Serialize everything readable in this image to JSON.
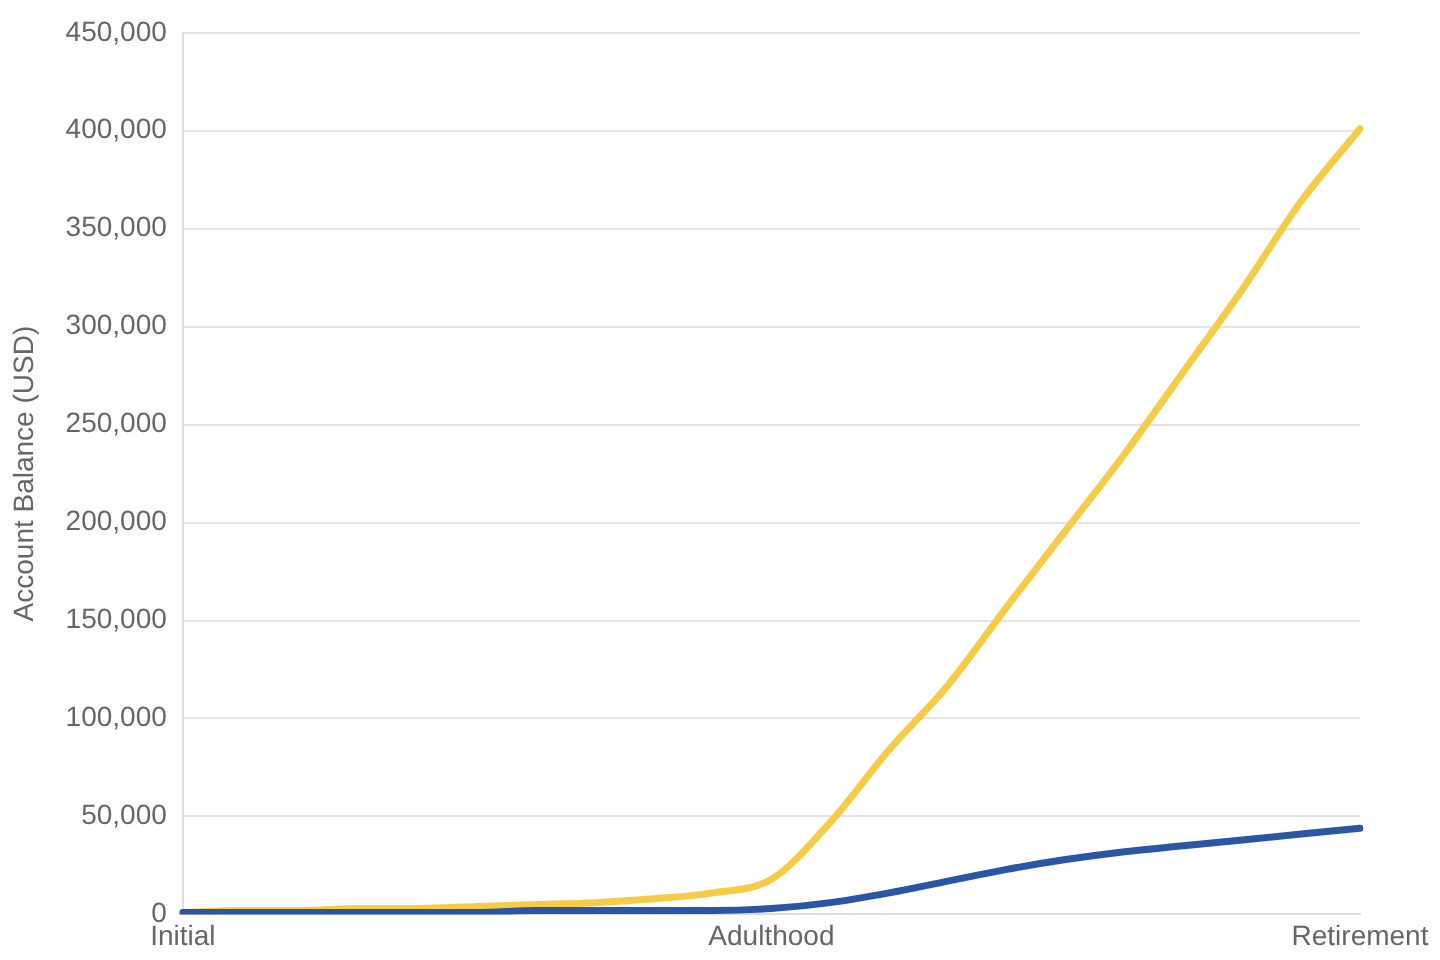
{
  "chart_data": {
    "type": "line",
    "ylabel": "Account Balance (USD)",
    "categories": [
      "Initial",
      null,
      null,
      null,
      null,
      null,
      null,
      null,
      null,
      null,
      "Adulthood",
      null,
      null,
      null,
      null,
      null,
      null,
      null,
      null,
      null,
      "Retirement"
    ],
    "ylim": [
      0,
      450000
    ],
    "yticks": [
      {
        "value": 0,
        "label": "0"
      },
      {
        "value": 50000,
        "label": "50,000"
      },
      {
        "value": 100000,
        "label": "100,000"
      },
      {
        "value": 150000,
        "label": "150,000"
      },
      {
        "value": 200000,
        "label": "200,000"
      },
      {
        "value": 250000,
        "label": "250,000"
      },
      {
        "value": 300000,
        "label": "300,000"
      },
      {
        "value": 350000,
        "label": "350,000"
      },
      {
        "value": 400000,
        "label": "400,000"
      },
      {
        "value": 450000,
        "label": "450,000"
      }
    ],
    "grid": "y",
    "marker": "none",
    "line_style": "solid",
    "series": [
      {
        "color": "#f6cb45",
        "values": [
          1000,
          2000,
          2000,
          3000,
          3000,
          4000,
          5000,
          6000,
          8000,
          11000,
          18000,
          47000,
          84000,
          117000,
          157000,
          196000,
          235000,
          277000,
          319000,
          364000,
          401000
        ]
      },
      {
        "color": "#2b56a6",
        "values": [
          1000,
          1000,
          1000,
          1000,
          1000,
          1000,
          2000,
          2000,
          2000,
          2000,
          3000,
          6000,
          11000,
          17000,
          23000,
          28000,
          32000,
          35000,
          38000,
          41000,
          44000
        ]
      }
    ]
  }
}
